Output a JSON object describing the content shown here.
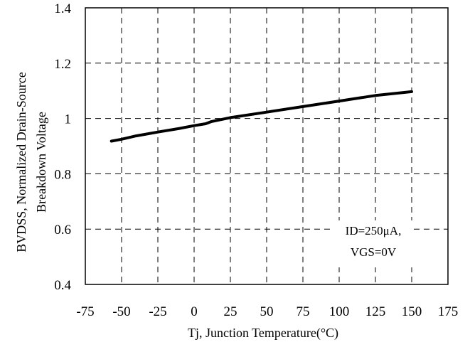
{
  "chart_data": {
    "type": "line",
    "xlabel": "Tj, Junction Temperature(°C)",
    "ylabel": [
      "BVDSS, Normalized Drain-Source",
      "Breakdown Voltage"
    ],
    "xlim": [
      -75,
      175
    ],
    "ylim": [
      0.4,
      1.4
    ],
    "x_ticks": [
      "-75",
      "-50",
      "-25",
      "0",
      "25",
      "50",
      "75",
      "100",
      "125",
      "150",
      "175"
    ],
    "y_ticks": [
      "0.4",
      "0.6",
      "0.8",
      "1",
      "1.2",
      "1.4"
    ],
    "grid": true,
    "series": [
      {
        "x": [
          -57,
          -50,
          -40,
          -25,
          -10,
          0,
          8,
          12,
          25,
          50,
          75,
          100,
          125,
          150
        ],
        "y": [
          0.918,
          0.925,
          0.937,
          0.951,
          0.964,
          0.974,
          0.981,
          0.989,
          1.003,
          1.023,
          1.043,
          1.063,
          1.083,
          1.097
        ]
      }
    ],
    "annotation": [
      "ID=250μA,",
      "VGS=0V"
    ],
    "line_color": "#000000"
  }
}
